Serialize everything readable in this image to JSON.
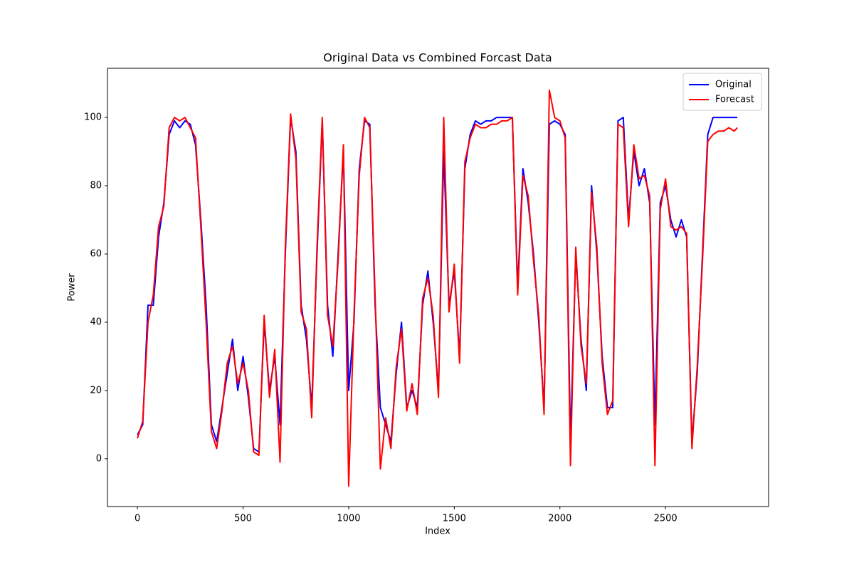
{
  "chart_data": {
    "type": "line",
    "title": "Original Data vs Combined Forcast Data",
    "x_label": "Index",
    "y_label": "Power",
    "x": [
      0,
      25,
      50,
      75,
      100,
      125,
      150,
      175,
      200,
      225,
      250,
      275,
      300,
      325,
      350,
      375,
      400,
      425,
      450,
      475,
      500,
      525,
      550,
      575,
      600,
      625,
      650,
      675,
      700,
      725,
      750,
      775,
      800,
      825,
      850,
      875,
      900,
      925,
      950,
      975,
      1000,
      1025,
      1050,
      1075,
      1100,
      1125,
      1150,
      1175,
      1200,
      1225,
      1250,
      1275,
      1300,
      1325,
      1350,
      1375,
      1400,
      1425,
      1450,
      1475,
      1500,
      1525,
      1550,
      1575,
      1600,
      1625,
      1650,
      1675,
      1700,
      1725,
      1750,
      1775,
      1800,
      1825,
      1850,
      1875,
      1900,
      1925,
      1950,
      1975,
      2000,
      2025,
      2050,
      2075,
      2100,
      2125,
      2150,
      2175,
      2200,
      2225,
      2250,
      2275,
      2300,
      2325,
      2350,
      2375,
      2400,
      2425,
      2450,
      2475,
      2500,
      2525,
      2550,
      2575,
      2600,
      2625,
      2650,
      2675,
      2700,
      2725,
      2750,
      2775,
      2800,
      2825,
      2840
    ],
    "series": [
      {
        "name": "Original",
        "color": "#0000ff",
        "values": [
          7,
          10,
          45,
          45,
          65,
          75,
          95,
          99,
          97,
          99,
          98,
          92,
          70,
          45,
          10,
          5,
          15,
          25,
          35,
          20,
          30,
          18,
          3,
          2,
          40,
          20,
          30,
          10,
          60,
          100,
          90,
          45,
          35,
          15,
          60,
          99,
          45,
          30,
          60,
          90,
          20,
          40,
          85,
          99,
          98,
          45,
          15,
          10,
          5,
          25,
          40,
          15,
          20,
          15,
          45,
          55,
          40,
          20,
          90,
          45,
          55,
          30,
          85,
          95,
          99,
          98,
          99,
          99,
          100,
          100,
          100,
          100,
          50,
          85,
          75,
          60,
          40,
          15,
          98,
          99,
          98,
          95,
          5,
          60,
          35,
          20,
          80,
          60,
          30,
          15,
          15,
          99,
          100,
          70,
          90,
          80,
          85,
          75,
          10,
          75,
          80,
          70,
          65,
          70,
          65,
          5,
          25,
          60,
          95,
          100,
          100,
          100,
          100,
          100,
          100
        ]
      },
      {
        "name": "Forecast",
        "color": "#ff0000",
        "values": [
          6,
          11,
          40,
          48,
          68,
          74,
          97,
          100,
          99,
          100,
          97,
          94,
          68,
          40,
          8,
          3,
          14,
          28,
          33,
          22,
          28,
          20,
          2,
          1,
          42,
          18,
          32,
          -1,
          62,
          101,
          88,
          43,
          38,
          12,
          62,
          100,
          42,
          33,
          58,
          92,
          -8,
          42,
          83,
          100,
          97,
          48,
          -3,
          12,
          3,
          27,
          38,
          14,
          22,
          13,
          47,
          53,
          42,
          18,
          100,
          43,
          57,
          28,
          87,
          94,
          98,
          97,
          97,
          98,
          98,
          99,
          99,
          100,
          48,
          83,
          77,
          58,
          42,
          13,
          108,
          100,
          99,
          94,
          -2,
          62,
          33,
          22,
          78,
          62,
          28,
          13,
          17,
          98,
          97,
          68,
          92,
          82,
          83,
          77,
          -2,
          73,
          82,
          68,
          67,
          68,
          66,
          3,
          27,
          58,
          93,
          95,
          96,
          96,
          97,
          96,
          97
        ]
      }
    ],
    "xlim": [
      -142,
      2988
    ],
    "ylim": [
      -14,
      114.4
    ],
    "xticks": [
      0,
      500,
      1000,
      1500,
      2000,
      2500
    ],
    "yticks": [
      0,
      20,
      40,
      60,
      80,
      100
    ],
    "legend": "upper right"
  }
}
